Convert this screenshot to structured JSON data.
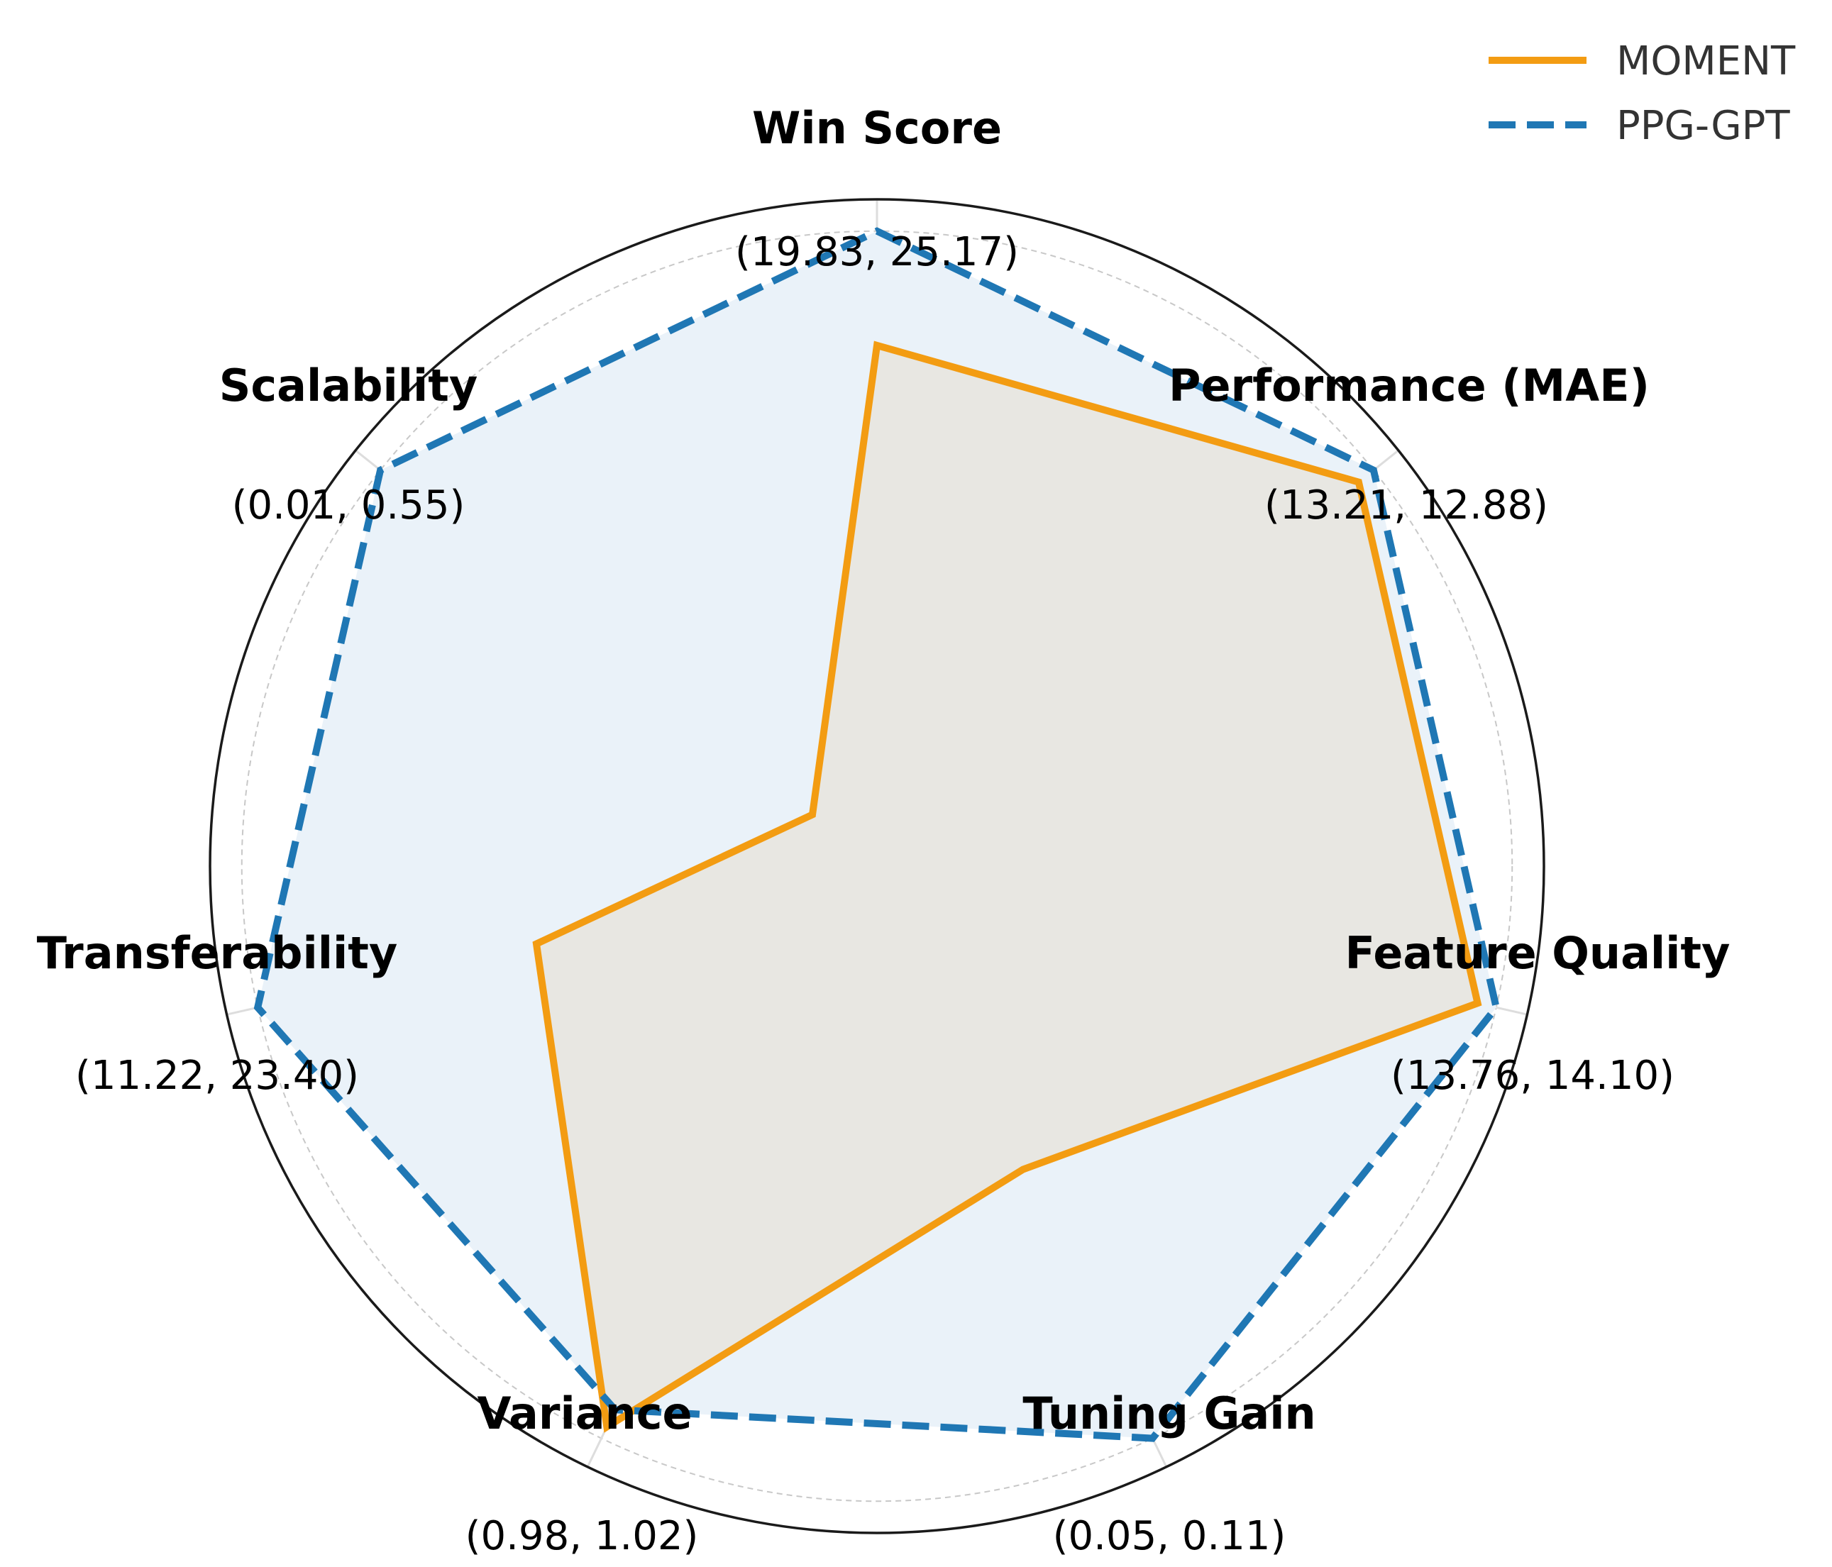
{
  "chart_data": {
    "type": "radar",
    "axes": [
      {
        "label": "Win Score",
        "values_text": "(19.83, 25.17)"
      },
      {
        "label": "Performance (MAE)",
        "values_text": "(13.21, 12.88)"
      },
      {
        "label": "Feature Quality",
        "values_text": "(13.76, 14.10)"
      },
      {
        "label": "Tuning Gain",
        "values_text": "(0.05, 0.11)"
      },
      {
        "label": "Variance",
        "values_text": "(0.98, 1.02)"
      },
      {
        "label": "Transferability",
        "values_text": "(11.22, 23.40)"
      },
      {
        "label": "Scalability",
        "values_text": "(0.01, 0.55)"
      }
    ],
    "series": [
      {
        "name": "MOMENT",
        "color": "#f39c12",
        "style": "solid",
        "values": [
          0.82,
          0.97,
          0.97,
          0.53,
          0.98,
          0.55,
          0.13
        ]
      },
      {
        "name": "PPG-GPT",
        "color": "#1f77b4",
        "style": "dashed",
        "fill": "#eaf2f9",
        "values": [
          1.0,
          1.0,
          1.0,
          1.0,
          0.95,
          1.0,
          1.0
        ]
      }
    ],
    "rlim": [
      0,
      1.05
    ],
    "grid_rings": [
      0.12,
      0.56,
      1.0
    ],
    "grid": true,
    "legend_position": "top-right"
  }
}
